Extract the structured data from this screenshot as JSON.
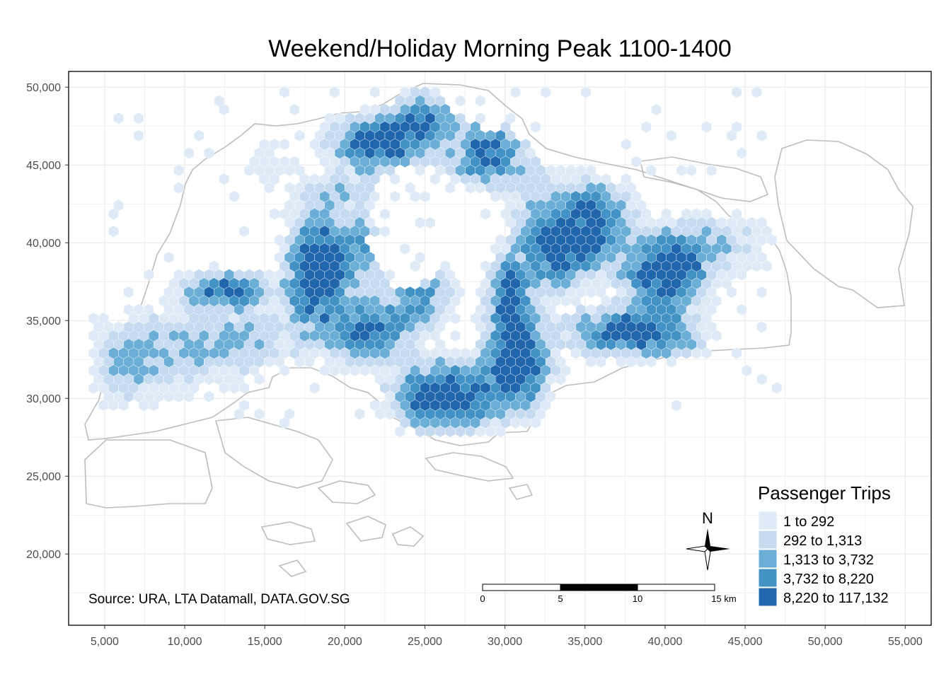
{
  "title": "Weekend/Holiday Morning Peak 1100-1400",
  "source_note": "Source: URA, LTA Datamall, DATA.GOV.SG",
  "north_label": "N",
  "legend": {
    "title": "Passenger Trips",
    "items": [
      {
        "label": "1 to 292",
        "color": "#deebf7"
      },
      {
        "label": "292 to 1,313",
        "color": "#c6dbef"
      },
      {
        "label": "1,313 to 3,732",
        "color": "#6baed6"
      },
      {
        "label": "3,732 to 8,220",
        "color": "#4292c6"
      },
      {
        "label": "8,220 to 117,132",
        "color": "#2166ac"
      }
    ]
  },
  "scale_bar": {
    "labels": [
      "0",
      "5",
      "10",
      "15 km"
    ],
    "max_km": 15
  },
  "axes": {
    "x_ticks": [
      "5,000",
      "10,000",
      "15,000",
      "20,000",
      "25,000",
      "30,000",
      "35,000",
      "40,000",
      "45,000",
      "50,000",
      "55,000"
    ],
    "x_values": [
      5000,
      10000,
      15000,
      20000,
      25000,
      30000,
      35000,
      40000,
      45000,
      50000,
      55000
    ],
    "y_ticks": [
      "50,000",
      "45,000",
      "40,000",
      "35,000",
      "30,000",
      "25,000",
      "20,000"
    ],
    "y_values": [
      50000,
      45000,
      40000,
      35000,
      30000,
      25000,
      20000
    ],
    "x_range": [
      2750,
      56620
    ],
    "y_range": [
      15420,
      51010
    ]
  },
  "colors": {
    "outline": "#bdbdbd",
    "grid": "#ebebeb",
    "frame": "#000000"
  }
}
